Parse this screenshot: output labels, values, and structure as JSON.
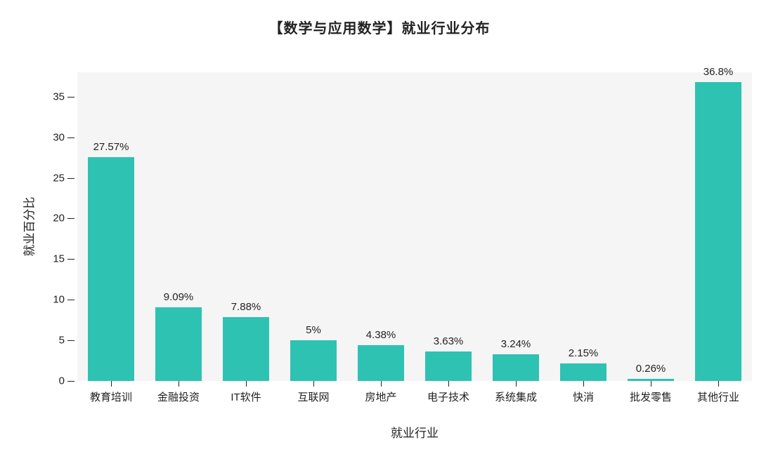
{
  "chart": {
    "type": "bar",
    "title": "【数学与应用数学】就业行业分布",
    "title_fontsize": 20,
    "xlabel": "就业行业",
    "ylabel": "就业百分比",
    "label_fontsize": 17,
    "tick_fontsize": 15,
    "bar_label_fontsize": 15,
    "background_color": "#ffffff",
    "plot_background_color": "#f5f5f5",
    "bar_color": "#2ec2b3",
    "text_color": "#222222",
    "ylim": [
      0,
      38
    ],
    "yticks": [
      0,
      5,
      10,
      15,
      20,
      25,
      30,
      35
    ],
    "bar_width": 0.68,
    "categories": [
      "教育培训",
      "金融投资",
      "IT软件",
      "互联网",
      "房地产",
      "电子技术",
      "系统集成",
      "快消",
      "批发零售",
      "其他行业"
    ],
    "values": [
      27.57,
      9.09,
      7.88,
      5,
      4.38,
      3.63,
      3.24,
      2.15,
      0.26,
      36.8
    ],
    "value_labels": [
      "27.57%",
      "9.09%",
      "7.88%",
      "5%",
      "4.38%",
      "3.63%",
      "3.24%",
      "2.15%",
      "0.26%",
      "36.8%"
    ]
  }
}
